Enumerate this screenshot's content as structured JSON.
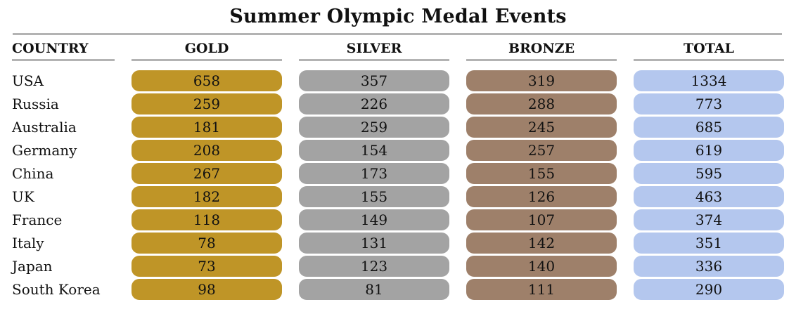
{
  "chart_data": {
    "type": "table",
    "title": "Summer Olympic Medal Events",
    "columns": [
      "COUNTRY",
      "GOLD",
      "SILVER",
      "BRONZE",
      "TOTAL"
    ],
    "colors": {
      "gold": "#bf9527",
      "silver": "#a3a3a3",
      "bronze": "#9e806a",
      "total": "#b4c7ee"
    },
    "rows": [
      {
        "country": "USA",
        "gold": "658",
        "silver": "357",
        "bronze": "319",
        "total": "1334"
      },
      {
        "country": "Russia",
        "gold": "259",
        "silver": "226",
        "bronze": "288",
        "total": "773"
      },
      {
        "country": "Australia",
        "gold": "181",
        "silver": "259",
        "bronze": "245",
        "total": "685"
      },
      {
        "country": "Germany",
        "gold": "208",
        "silver": "154",
        "bronze": "257",
        "total": "619"
      },
      {
        "country": "China",
        "gold": "267",
        "silver": "173",
        "bronze": "155",
        "total": "595"
      },
      {
        "country": "UK",
        "gold": "182",
        "silver": "155",
        "bronze": "126",
        "total": "463"
      },
      {
        "country": "France",
        "gold": "118",
        "silver": "149",
        "bronze": "107",
        "total": "374"
      },
      {
        "country": "Italy",
        "gold": "78",
        "silver": "131",
        "bronze": "142",
        "total": "351"
      },
      {
        "country": "Japan",
        "gold": "73",
        "silver": "123",
        "bronze": "140",
        "total": "336"
      },
      {
        "country": "South Korea",
        "gold": "98",
        "silver": "81",
        "bronze": "111",
        "total": "290"
      }
    ]
  }
}
